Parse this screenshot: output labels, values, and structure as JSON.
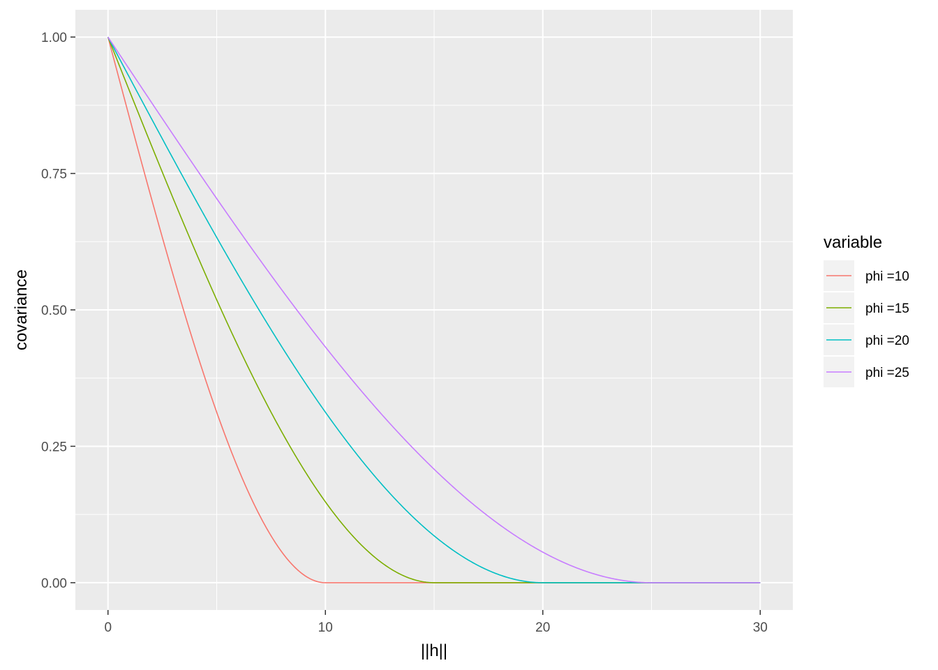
{
  "chart_data": {
    "type": "line",
    "xlabel": "||h||",
    "ylabel": "covariance",
    "xlim": [
      -1.5,
      31.5
    ],
    "ylim": [
      -0.05,
      1.05
    ],
    "x_ticks": [
      0,
      10,
      20,
      30
    ],
    "x_tick_labels": [
      "0",
      "10",
      "20",
      "30"
    ],
    "y_ticks": [
      0,
      0.25,
      0.5,
      0.75,
      1.0
    ],
    "y_tick_labels": [
      "0.00",
      "0.25",
      "0.50",
      "0.75",
      "1.00"
    ],
    "grid": true,
    "background": "#ebebeb",
    "legend": {
      "title": "variable",
      "position": "right"
    },
    "x_range_plotted": [
      0,
      30
    ],
    "model": "spherical covariance",
    "series": [
      {
        "name": "phi =10",
        "range": 10,
        "color": "#F8766D"
      },
      {
        "name": "phi =15",
        "range": 15,
        "color": "#7CAE00"
      },
      {
        "name": "phi =20",
        "range": 20,
        "color": "#00BFC4"
      },
      {
        "name": "phi =25",
        "range": 25,
        "color": "#C77CFF"
      }
    ]
  }
}
